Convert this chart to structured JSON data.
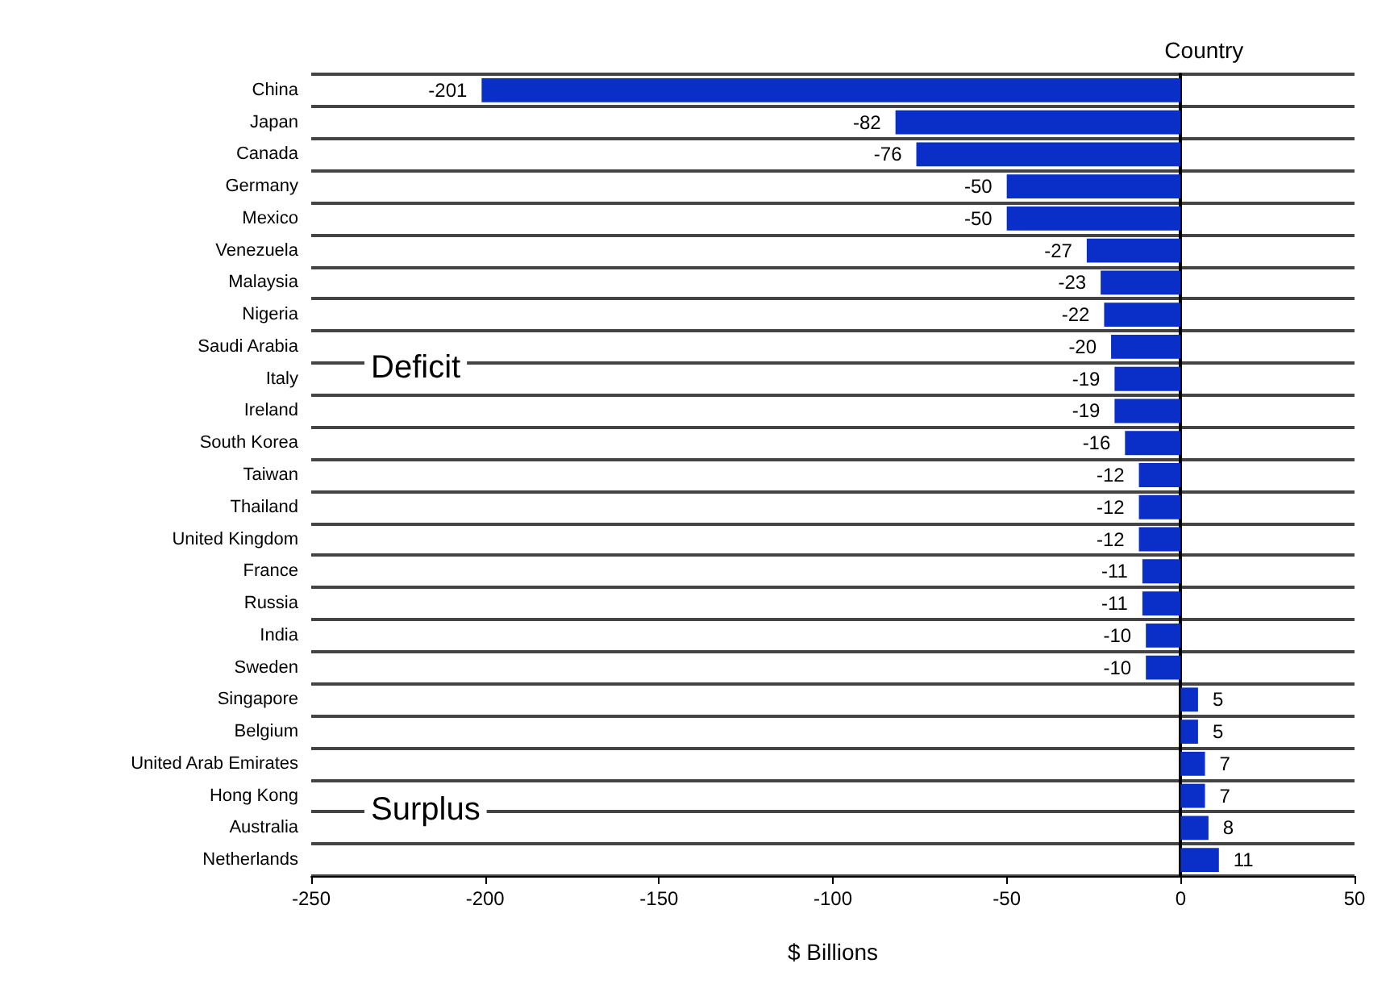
{
  "chart_data": {
    "type": "bar",
    "orientation": "horizontal",
    "ylabel": "Country",
    "xlabel": "$ Billions",
    "categories": [
      "China",
      "Japan",
      "Canada",
      "Germany",
      "Mexico",
      "Venezuela",
      "Malaysia",
      "Nigeria",
      "Saudi Arabia",
      "Italy",
      "Ireland",
      "South Korea",
      "Taiwan",
      "Thailand",
      "United Kingdom",
      "France",
      "Russia",
      "India",
      "Sweden",
      "Singapore",
      "Belgium",
      "United Arab Emirates",
      "Hong Kong",
      "Australia",
      "Netherlands"
    ],
    "values": [
      -201,
      -82,
      -76,
      -50,
      -50,
      -27,
      -23,
      -22,
      -20,
      -19,
      -19,
      -16,
      -12,
      -12,
      -12,
      -11,
      -11,
      -10,
      -10,
      5,
      5,
      7,
      7,
      8,
      11
    ],
    "color": "#0a2ec8",
    "xlim": [
      -250,
      50
    ],
    "xticks": [
      -250,
      -200,
      -150,
      -100,
      -50,
      0,
      50
    ],
    "grid": "y",
    "data_labels": true,
    "annotations": [
      "Deficit",
      "Surplus"
    ]
  }
}
